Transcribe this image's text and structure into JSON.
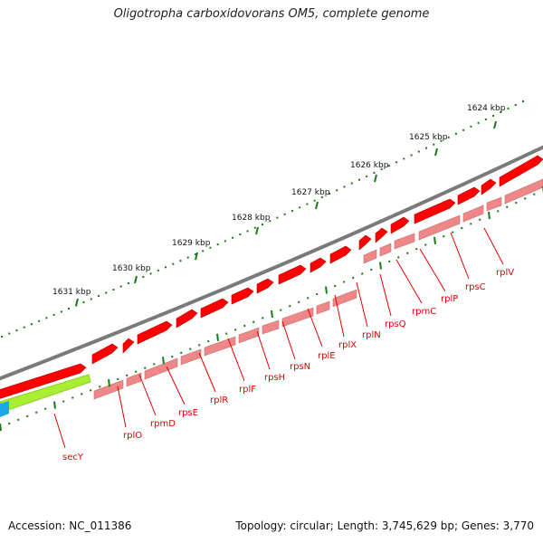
{
  "title": "Oligotropha carboxidovorans OM5, complete genome",
  "footer": {
    "accession": "Accession: NC_011386",
    "summary": "Topology: circular; Length: 3,745,629 bp; Genes: 3,770"
  },
  "scale_labels": [
    "1624 kbp",
    "1625 kbp",
    "1626 kbp",
    "1627 kbp",
    "1628 kbp",
    "1629 kbp",
    "1630 kbp",
    "1631 kbp"
  ],
  "gene_labels": [
    "rplV",
    "rpsC",
    "rplP",
    "rpmC",
    "rpsQ",
    "rplN",
    "rplX",
    "rplE",
    "rpsN",
    "rpsH",
    "rplF",
    "rplR",
    "rpsE",
    "rpmD",
    "rplO",
    "secY"
  ],
  "colors": {
    "backbone": "#7a7a7a",
    "forward_cds": "#ff0000",
    "forward_gene": "#ee8888",
    "scale_ticks": "#1a7a1a",
    "secY_gene": "#aaee33",
    "other_feature": "#19a8e8",
    "label_text": "#e00000"
  }
}
